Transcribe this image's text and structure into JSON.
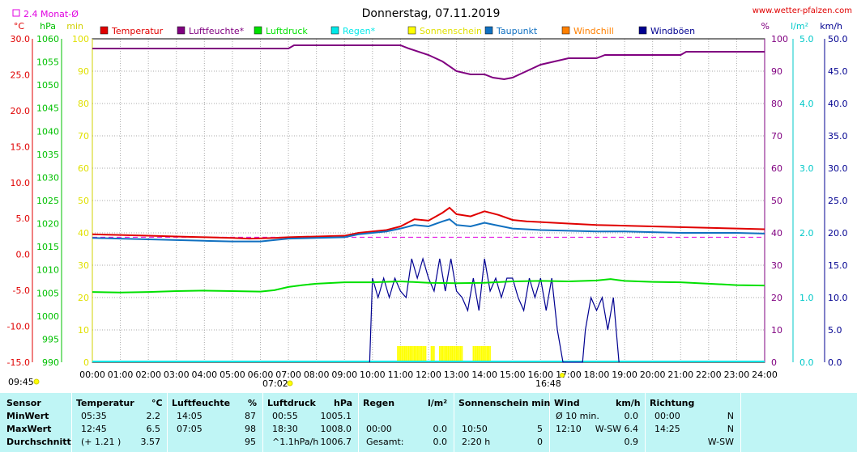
{
  "header": {
    "title": "Donnerstag, 07.11.2019",
    "site": "www.wetter-pfalzen.com",
    "avg_label": "2.4 Monat-Ø"
  },
  "units": {
    "left1": "°C",
    "left2": "hPa",
    "left3": "min",
    "right1": "%",
    "right2": "l/m²",
    "right3": "km/h"
  },
  "legend": [
    {
      "label": "Temperatur",
      "color": "#e00000"
    },
    {
      "label": "Luftfeuchte*",
      "color": "#800080"
    },
    {
      "label": "Luftdruck",
      "color": "#00e000"
    },
    {
      "label": "Regen*",
      "color": "#00e8e8"
    },
    {
      "label": "Sonnenschein",
      "color": "#ffff00"
    },
    {
      "label": "Taupunkt",
      "color": "#1070c0"
    },
    {
      "label": "Windchill",
      "color": "#ff8000"
    },
    {
      "label": "Windböen",
      "color": "#000090"
    }
  ],
  "markers": {
    "sunrise": "07:02",
    "sunset": "16:48",
    "daylength": "09:45"
  },
  "chart_data": {
    "type": "line",
    "x_unit": "hour",
    "x_ticks": [
      "00:00",
      "01:00",
      "02:00",
      "03:00",
      "04:00",
      "05:00",
      "06:00",
      "07:00",
      "08:00",
      "09:00",
      "10:00",
      "11:00",
      "12:00",
      "13:00",
      "14:00",
      "15:00",
      "16:00",
      "17:00",
      "18:00",
      "19:00",
      "20:00",
      "21:00",
      "22:00",
      "23:00",
      "24:00"
    ],
    "axes": {
      "temperature": {
        "unit": "°C",
        "range": [
          -15,
          30
        ],
        "ticks": [
          "30.0",
          "25.0",
          "20.0",
          "15.0",
          "10.0",
          "5.0",
          "0.0",
          "-5.0",
          "-10.0",
          "-15.0"
        ],
        "color": "#e00000"
      },
      "pressure": {
        "unit": "hPa",
        "range": [
          990,
          1060
        ],
        "ticks": [
          "1060",
          "1055",
          "1050",
          "1045",
          "1040",
          "1035",
          "1030",
          "1025",
          "1020",
          "1015",
          "1010",
          "1005",
          "1000",
          "995",
          "990"
        ],
        "color": "#00c000"
      },
      "minutes": {
        "unit": "min",
        "range": [
          0,
          100
        ],
        "ticks": [
          "100",
          "90",
          "80",
          "70",
          "60",
          "50",
          "40",
          "30",
          "20",
          "10",
          "0"
        ],
        "color": "#e0e000"
      },
      "humidity": {
        "unit": "%",
        "range": [
          0,
          100
        ],
        "ticks": [
          "100",
          "90",
          "80",
          "70",
          "60",
          "50",
          "40",
          "30",
          "20",
          "10",
          "0"
        ],
        "color": "#800080"
      },
      "rain": {
        "unit": "l/m²",
        "range": [
          0,
          5
        ],
        "ticks": [
          "5.0",
          "4.0",
          "3.0",
          "2.0",
          "1.0",
          "0.0"
        ],
        "color": "#00c8c8"
      },
      "wind": {
        "unit": "km/h",
        "range": [
          0,
          50
        ],
        "ticks": [
          "50.0",
          "45.0",
          "40.0",
          "35.0",
          "30.0",
          "25.0",
          "20.0",
          "15.0",
          "10.0",
          "5.0",
          "0.0"
        ],
        "color": "#000090"
      }
    },
    "monthly_avg_temp": 2.4,
    "series": [
      {
        "name": "Temperatur",
        "axis": "temperature",
        "color": "#e00000",
        "points": [
          [
            0,
            2.8
          ],
          [
            1,
            2.7
          ],
          [
            2,
            2.6
          ],
          [
            3,
            2.5
          ],
          [
            4,
            2.4
          ],
          [
            5,
            2.3
          ],
          [
            5.6,
            2.2
          ],
          [
            6.5,
            2.3
          ],
          [
            7,
            2.4
          ],
          [
            8,
            2.5
          ],
          [
            9,
            2.6
          ],
          [
            9.5,
            3.0
          ],
          [
            10,
            3.2
          ],
          [
            10.5,
            3.4
          ],
          [
            11,
            3.9
          ],
          [
            11.5,
            4.9
          ],
          [
            12,
            4.7
          ],
          [
            12.5,
            5.8
          ],
          [
            12.75,
            6.5
          ],
          [
            13,
            5.6
          ],
          [
            13.5,
            5.3
          ],
          [
            14,
            6.0
          ],
          [
            14.5,
            5.5
          ],
          [
            15,
            4.8
          ],
          [
            15.5,
            4.6
          ],
          [
            16,
            4.5
          ],
          [
            17,
            4.3
          ],
          [
            18,
            4.1
          ],
          [
            19,
            4.0
          ],
          [
            20,
            3.9
          ],
          [
            21,
            3.8
          ],
          [
            22,
            3.7
          ],
          [
            23,
            3.6
          ],
          [
            24,
            3.5
          ]
        ]
      },
      {
        "name": "Taupunkt",
        "axis": "temperature",
        "color": "#1070c0",
        "points": [
          [
            0,
            2.3
          ],
          [
            1,
            2.2
          ],
          [
            2,
            2.1
          ],
          [
            3,
            2.0
          ],
          [
            4,
            1.9
          ],
          [
            5,
            1.8
          ],
          [
            6,
            1.8
          ],
          [
            7,
            2.2
          ],
          [
            8,
            2.3
          ],
          [
            9,
            2.4
          ],
          [
            9.5,
            2.8
          ],
          [
            10,
            3.0
          ],
          [
            10.5,
            3.2
          ],
          [
            11,
            3.6
          ],
          [
            11.5,
            4.1
          ],
          [
            12,
            3.9
          ],
          [
            12.5,
            4.6
          ],
          [
            12.75,
            4.9
          ],
          [
            13,
            4.1
          ],
          [
            13.5,
            3.9
          ],
          [
            14,
            4.4
          ],
          [
            14.5,
            4.0
          ],
          [
            15,
            3.6
          ],
          [
            16,
            3.4
          ],
          [
            17,
            3.3
          ],
          [
            18,
            3.2
          ],
          [
            19,
            3.2
          ],
          [
            20,
            3.1
          ],
          [
            21,
            3.0
          ],
          [
            22,
            3.0
          ],
          [
            23,
            3.0
          ],
          [
            24,
            2.9
          ]
        ]
      },
      {
        "name": "Luftfeuchte*",
        "axis": "humidity",
        "color": "#800080",
        "points": [
          [
            0,
            97
          ],
          [
            1,
            97
          ],
          [
            2,
            97
          ],
          [
            3,
            97
          ],
          [
            4,
            97
          ],
          [
            5,
            97
          ],
          [
            6,
            97
          ],
          [
            7,
            97
          ],
          [
            7.2,
            98
          ],
          [
            8,
            98
          ],
          [
            9,
            98
          ],
          [
            10,
            98
          ],
          [
            11,
            98
          ],
          [
            11.3,
            97
          ],
          [
            12,
            95
          ],
          [
            12.5,
            93
          ],
          [
            13,
            90
          ],
          [
            13.5,
            89
          ],
          [
            14,
            89
          ],
          [
            14.3,
            88
          ],
          [
            14.7,
            87.5
          ],
          [
            15,
            88
          ],
          [
            15.5,
            90
          ],
          [
            16,
            92
          ],
          [
            17,
            94
          ],
          [
            18,
            94
          ],
          [
            18.3,
            95
          ],
          [
            19,
            95
          ],
          [
            20,
            95
          ],
          [
            21,
            95
          ],
          [
            21.2,
            96
          ],
          [
            22,
            96
          ],
          [
            23,
            96
          ],
          [
            24,
            96
          ]
        ]
      },
      {
        "name": "Luftdruck",
        "axis": "pressure",
        "color": "#00e000",
        "points": [
          [
            0,
            1005.2
          ],
          [
            1,
            1005.1
          ],
          [
            2,
            1005.2
          ],
          [
            3,
            1005.4
          ],
          [
            4,
            1005.5
          ],
          [
            5,
            1005.4
          ],
          [
            6,
            1005.3
          ],
          [
            6.5,
            1005.6
          ],
          [
            7,
            1006.3
          ],
          [
            7.5,
            1006.7
          ],
          [
            8,
            1007.0
          ],
          [
            9,
            1007.3
          ],
          [
            10,
            1007.3
          ],
          [
            11,
            1007.5
          ],
          [
            12,
            1007.2
          ],
          [
            13,
            1007.1
          ],
          [
            14,
            1007.2
          ],
          [
            15,
            1007.5
          ],
          [
            16,
            1007.6
          ],
          [
            17,
            1007.5
          ],
          [
            18,
            1007.7
          ],
          [
            18.5,
            1008.0
          ],
          [
            19,
            1007.6
          ],
          [
            20,
            1007.4
          ],
          [
            21,
            1007.3
          ],
          [
            22,
            1007.0
          ],
          [
            23,
            1006.7
          ],
          [
            24,
            1006.6
          ]
        ]
      }
    ],
    "sunshine_blocks": [
      [
        10.9,
        11.9
      ],
      [
        12.1,
        12.2
      ],
      [
        12.4,
        13.2
      ],
      [
        13.6,
        14.2
      ]
    ],
    "gusts": [
      [
        9.9,
        0
      ],
      [
        10.0,
        13
      ],
      [
        10.2,
        10
      ],
      [
        10.4,
        13
      ],
      [
        10.6,
        10
      ],
      [
        10.8,
        13
      ],
      [
        11.0,
        11
      ],
      [
        11.2,
        10
      ],
      [
        11.4,
        16
      ],
      [
        11.6,
        13
      ],
      [
        11.8,
        16
      ],
      [
        12.0,
        13
      ],
      [
        12.2,
        11
      ],
      [
        12.4,
        16
      ],
      [
        12.6,
        11
      ],
      [
        12.8,
        16
      ],
      [
        13.0,
        11
      ],
      [
        13.2,
        10
      ],
      [
        13.4,
        8
      ],
      [
        13.6,
        13
      ],
      [
        13.8,
        8
      ],
      [
        14.0,
        16
      ],
      [
        14.2,
        11
      ],
      [
        14.4,
        13
      ],
      [
        14.6,
        10
      ],
      [
        14.8,
        13
      ],
      [
        15.0,
        13
      ],
      [
        15.2,
        10
      ],
      [
        15.4,
        8
      ],
      [
        15.6,
        13
      ],
      [
        15.8,
        10
      ],
      [
        16.0,
        13
      ],
      [
        16.2,
        8
      ],
      [
        16.4,
        13
      ],
      [
        16.6,
        5
      ],
      [
        16.8,
        0
      ],
      [
        17.5,
        0
      ],
      [
        17.6,
        5
      ],
      [
        17.8,
        10
      ],
      [
        18.0,
        8
      ],
      [
        18.2,
        10
      ],
      [
        18.4,
        5
      ],
      [
        18.6,
        10
      ],
      [
        18.8,
        0
      ]
    ]
  },
  "table": {
    "headers": {
      "sensor": "Sensor",
      "temp": "Temperatur",
      "temp_unit": "°C",
      "hum": "Luftfeuchte",
      "hum_unit": "%",
      "press": "Luftdruck",
      "press_unit": "hPa",
      "rain": "Regen",
      "rain_unit": "l/m²",
      "sun": "Sonnenschein min",
      "wind": "Wind",
      "wind_unit": "km/h",
      "dir": "Richtung"
    },
    "rows": [
      {
        "label": "MinWert",
        "t_time": "05:35",
        "t_val": "2.2",
        "h_time": "14:05",
        "h_val": "87",
        "p_time": "00:55",
        "p_val": "1005.1",
        "r_time": "",
        "r_val": "",
        "s_time": "",
        "s_val": "",
        "w_time": "Ø 10 min.",
        "w_val": "0.0",
        "d_time": "00:00",
        "d_val": "N"
      },
      {
        "label": "MaxWert",
        "t_time": "12:45",
        "t_val": "6.5",
        "h_time": "07:05",
        "h_val": "98",
        "p_time": "18:30",
        "p_val": "1008.0",
        "r_time": "00:00",
        "r_val": "0.0",
        "s_time": "10:50",
        "s_val": "5",
        "w_time": "12:10",
        "w_val": "W-SW 6.4",
        "d_time": "14:25",
        "d_val": "N"
      },
      {
        "label": "Durchschnitt",
        "t_time": "(+ 1.21 )",
        "t_val": "3.57",
        "h_time": "",
        "h_val": "95",
        "p_time": "^1.1hPa/h",
        "p_val": "1006.7",
        "r_time": "Gesamt:",
        "r_val": "0.0",
        "s_time": "2:20 h",
        "s_val": "0",
        "w_time": "",
        "w_val": "0.9",
        "d_time": "",
        "d_val": "W-SW"
      }
    ]
  }
}
